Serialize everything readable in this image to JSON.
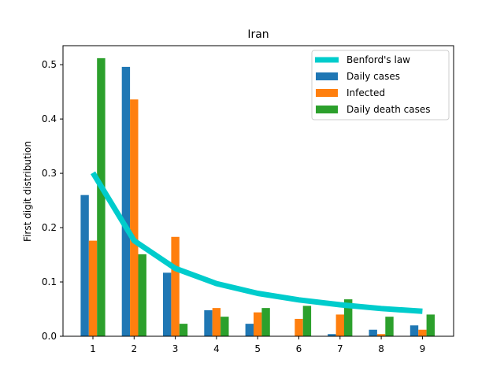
{
  "chart_data": {
    "type": "bar",
    "title": "Iran",
    "xlabel": "",
    "ylabel": "First digit distribution",
    "categories": [
      "1",
      "2",
      "3",
      "4",
      "5",
      "6",
      "7",
      "8",
      "9"
    ],
    "ylim": [
      0,
      0.535
    ],
    "yticks": [
      "0.0",
      "0.1",
      "0.2",
      "0.3",
      "0.4",
      "0.5"
    ],
    "grid": false,
    "legend_position": "top-right",
    "series": [
      {
        "name": "Daily cases",
        "color": "#1f77b4",
        "values": [
          0.26,
          0.496,
          0.117,
          0.048,
          0.023,
          0.0,
          0.004,
          0.012,
          0.02
        ]
      },
      {
        "name": "Infected",
        "color": "#ff7f0e",
        "values": [
          0.176,
          0.436,
          0.183,
          0.052,
          0.044,
          0.032,
          0.04,
          0.004,
          0.012
        ]
      },
      {
        "name": "Daily death cases",
        "color": "#2ca02c",
        "values": [
          0.512,
          0.151,
          0.023,
          0.036,
          0.052,
          0.056,
          0.068,
          0.036,
          0.04
        ]
      }
    ],
    "line": {
      "name": "Benford's law",
      "color": "#00cccc",
      "values": [
        0.301,
        0.176,
        0.125,
        0.097,
        0.079,
        0.067,
        0.058,
        0.051,
        0.046
      ]
    }
  }
}
